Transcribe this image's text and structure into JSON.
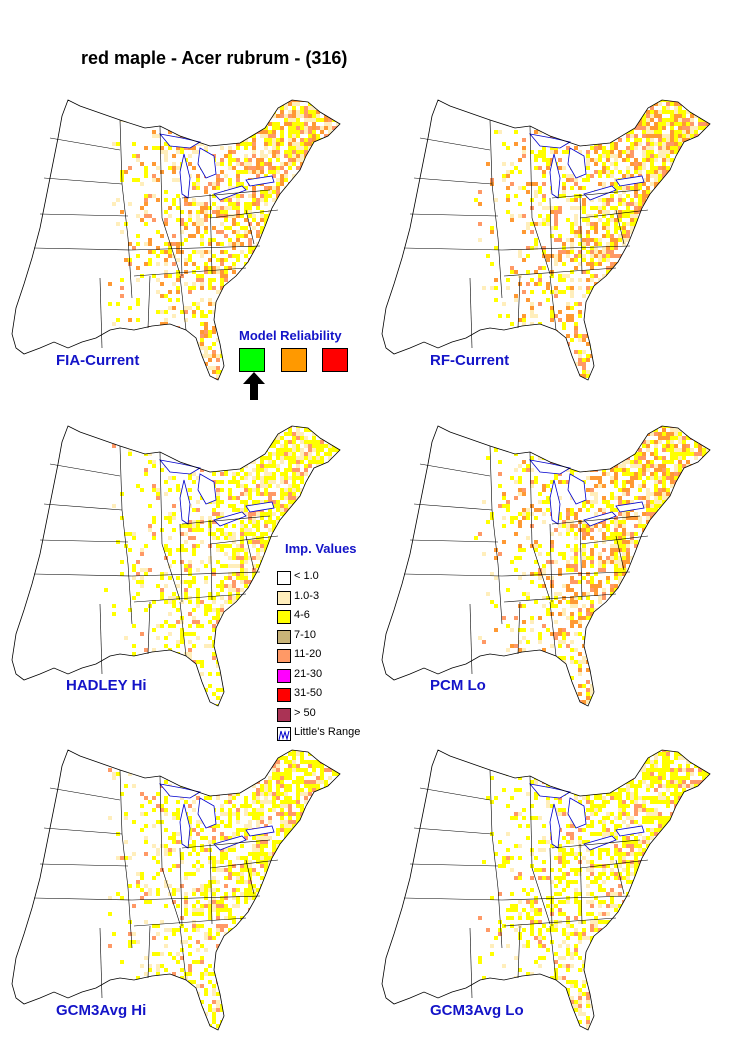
{
  "title": "red maple - Acer rubrum - (316)",
  "panels": [
    {
      "label": "FIA-Current",
      "fill": "#ff9933",
      "density": 0.78
    },
    {
      "label": "RF-Current",
      "fill": "#ff9933",
      "density": 0.82
    },
    {
      "label": "HADLEY Hi",
      "fill": "#ffff00",
      "density": 0.7
    },
    {
      "label": "PCM Lo",
      "fill": "#ff9933",
      "density": 0.76
    },
    {
      "label": "GCM3Avg Hi",
      "fill": "#ffff00",
      "density": 0.72
    },
    {
      "label": "GCM3Avg Lo",
      "fill": "#ffff00",
      "density": 0.74
    }
  ],
  "model_reliability": {
    "title": "Model Reliability",
    "boxes": [
      {
        "color": "#00ff00",
        "selected": true
      },
      {
        "color": "#ff9900",
        "selected": false
      },
      {
        "color": "#ff0000",
        "selected": false
      }
    ]
  },
  "legend": {
    "title": "Imp. Values",
    "items": [
      {
        "label": "< 1.0",
        "color": "#ffffff"
      },
      {
        "label": "1.0-3",
        "color": "#ffeebb"
      },
      {
        "label": "4-6",
        "color": "#ffff00"
      },
      {
        "label": "7-10",
        "color": "#c8b478"
      },
      {
        "label": "11-20",
        "color": "#ff9966"
      },
      {
        "label": "21-30",
        "color": "#ff00ff"
      },
      {
        "label": "31-50",
        "color": "#ff0000"
      },
      {
        "label": "> 50",
        "color": "#aa3355"
      },
      {
        "label": "Little's Range",
        "color": "#ffffff",
        "range": true
      }
    ]
  },
  "colors": {
    "label_blue": "#1414c8",
    "range_line": "#0000cc"
  }
}
